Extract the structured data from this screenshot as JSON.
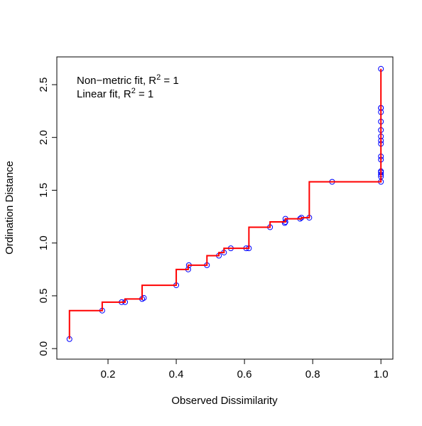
{
  "chart_data": {
    "type": "shepard",
    "xlabel": "Observed Dissimilarity",
    "ylabel": "Ordination Distance",
    "annotations": [
      {
        "prefix": "Non−metric fit, R",
        "sup": "2",
        "suffix": " = 1"
      },
      {
        "prefix": "Linear fit, R",
        "sup": "2",
        "suffix": " = 1"
      }
    ],
    "xlim": [
      0.05,
      1.035
    ],
    "ylim": [
      -0.1,
      2.763
    ],
    "xticks": [
      0.2,
      0.4,
      0.6,
      0.8,
      {
        "value": 1,
        "label": "1.0"
      }
    ],
    "yticks": [
      {
        "value": 0,
        "label": "0.0"
      },
      0.5,
      {
        "value": 1,
        "label": "1.0"
      },
      1.5,
      {
        "value": 2,
        "label": "2.0"
      },
      2.5
    ],
    "grid": false,
    "series": [
      {
        "color": "#0000ff",
        "marker": "open-circle",
        "x": [
          0.087,
          0.183,
          0.24,
          0.25,
          0.3,
          0.305,
          0.4,
          0.435,
          0.437,
          0.49,
          0.525,
          0.54,
          0.56,
          0.605,
          0.613,
          0.675,
          0.718,
          0.72,
          0.72,
          0.763,
          0.767,
          0.79,
          0.857,
          1,
          1,
          1,
          1,
          1,
          1,
          1,
          1,
          1,
          1,
          1,
          1,
          1,
          1,
          1,
          1
        ],
        "values": [
          0.09,
          0.36,
          0.44,
          0.44,
          0.47,
          0.48,
          0.6,
          0.75,
          0.79,
          0.79,
          0.88,
          0.91,
          0.95,
          0.95,
          0.95,
          1.15,
          1.19,
          1.2,
          1.23,
          1.23,
          1.24,
          1.24,
          1.58,
          1.58,
          1.63,
          1.65,
          1.67,
          1.68,
          1.79,
          1.82,
          1.94,
          1.97,
          2.01,
          2.07,
          2.15,
          2.24,
          2.28,
          2.28,
          2.65
        ]
      },
      {
        "color": "#ff0000",
        "step": "S",
        "x": [
          0.087,
          0.183,
          0.25,
          0.3,
          0.4,
          0.435,
          0.49,
          0.525,
          0.54,
          0.56,
          0.613,
          0.675,
          0.72,
          0.767,
          0.79,
          0.857,
          1,
          1
        ],
        "values": [
          0.09,
          0.36,
          0.44,
          0.47,
          0.6,
          0.75,
          0.79,
          0.88,
          0.91,
          0.95,
          0.95,
          1.15,
          1.2,
          1.23,
          1.24,
          1.58,
          1.58,
          2.65
        ]
      }
    ]
  }
}
